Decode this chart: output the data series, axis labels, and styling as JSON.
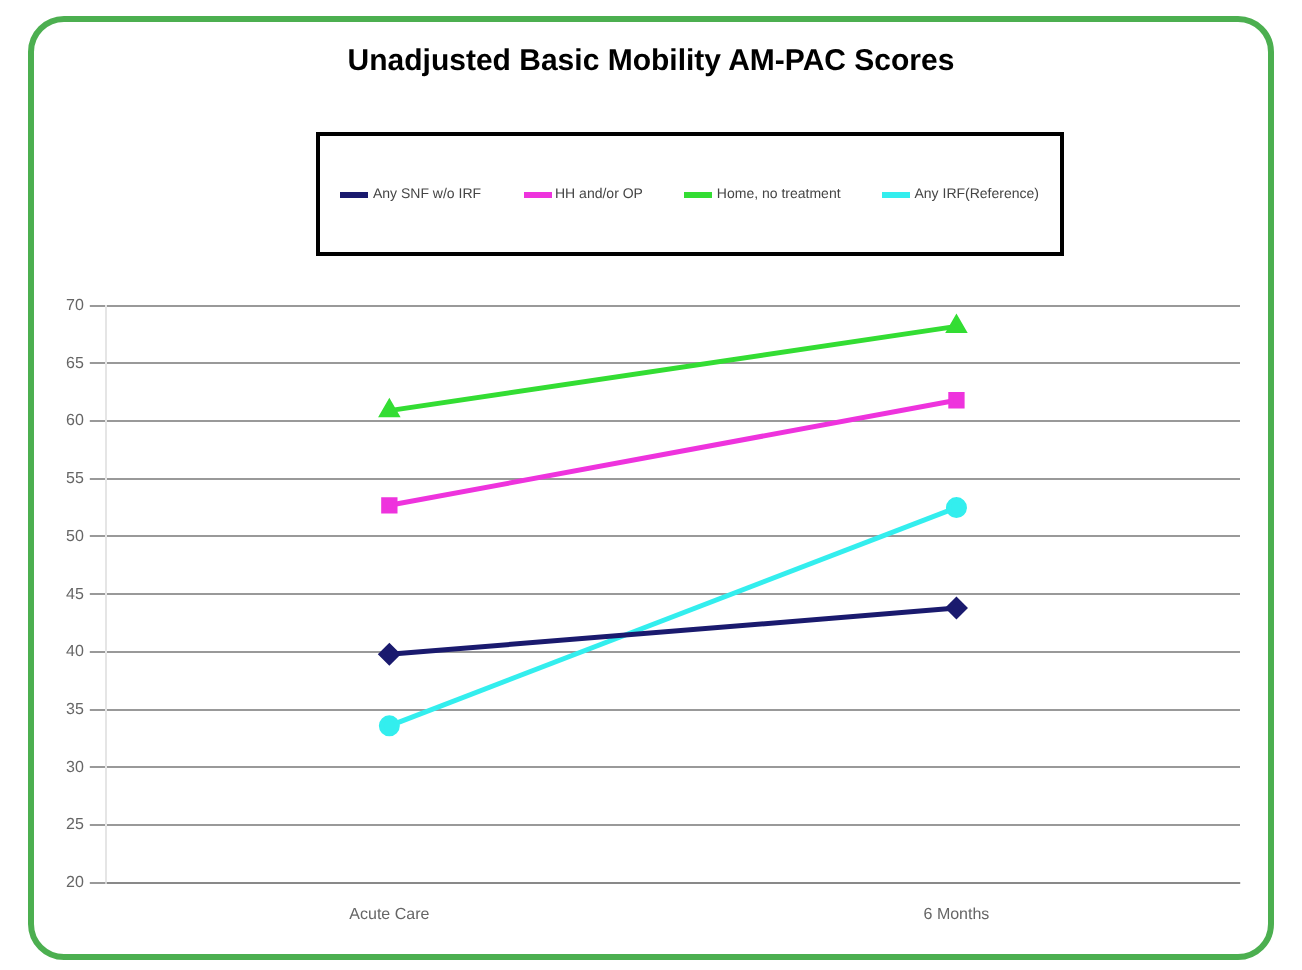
{
  "chart_data": {
    "type": "line",
    "title": "Unadjusted Basic Mobility AM-PAC Scores",
    "categories": [
      "Acute Care",
      "6 Months"
    ],
    "series": [
      {
        "name": "Any SNF w/o IRF",
        "color": "#1a1a6e",
        "values": [
          39.8,
          43.8
        ],
        "marker": "diamond"
      },
      {
        "name": "HH and/or OP",
        "color": "#ee33dd",
        "values": [
          52.7,
          61.8
        ],
        "marker": "square"
      },
      {
        "name": "Home, no treatment",
        "color": "#33dd33",
        "values": [
          60.9,
          68.2
        ],
        "marker": "triangle"
      },
      {
        "name": "Any IRF(Reference)",
        "color": "#33eeee",
        "values": [
          33.6,
          52.5
        ],
        "marker": "circle"
      }
    ],
    "ylim": [
      20,
      70
    ],
    "yticks": [
      20,
      25,
      30,
      35,
      40,
      45,
      50,
      55,
      60,
      65,
      70
    ],
    "grid": "y",
    "legend": "top",
    "line_style": "solid"
  }
}
